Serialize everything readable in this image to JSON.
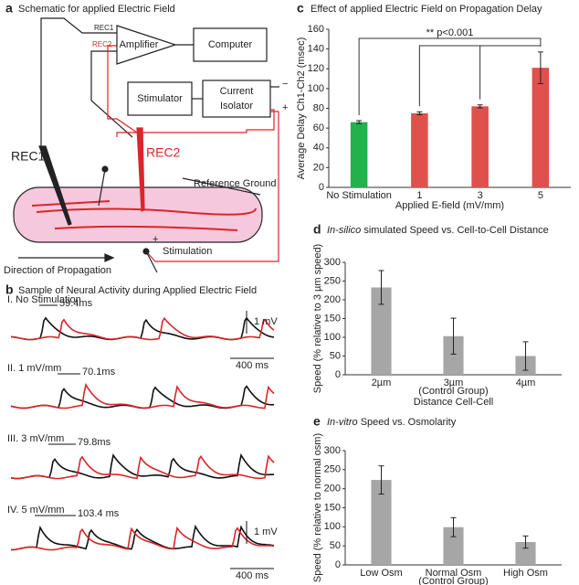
{
  "schematic": {
    "panel": "a",
    "title": "Schematic for applied Electric Field",
    "rec1_small": "REC1",
    "rec2_small": "REC2",
    "amplifier": "Amplifier",
    "computer": "Computer",
    "stimulator": "Stimulator",
    "isolator": [
      "Current",
      "Isolator"
    ],
    "minus": "−",
    "plus": "+",
    "rec1": "REC1",
    "rec2": "REC2",
    "reference": "Reference Ground",
    "stimulation": "Stimulation",
    "stim_plus": "+",
    "direction": "Direction of Propagation"
  },
  "traces": {
    "panel": "b",
    "title": "Sample of Neural Activity during Applied Electric Field",
    "rows": [
      {
        "label": "I. No Stimulation",
        "delay": "59.4ms"
      },
      {
        "label": "II. 1 mV/mm",
        "delay": "70.1ms"
      },
      {
        "label": "III. 3 mV/mm",
        "delay": "79.8ms"
      },
      {
        "label": "IV. 5 mV/mm",
        "delay": "103.4 ms"
      }
    ],
    "scales": [
      {
        "voltage": "1 mV",
        "time": "400 ms"
      },
      {
        "voltage": "1 mV",
        "time": "400 ms"
      }
    ]
  },
  "chart_data": [
    {
      "type": "bar",
      "panel": "c",
      "title": "Effect of applied Electric Field on Propagation Delay",
      "categories": [
        "No Stimulation",
        "1",
        "3",
        "5"
      ],
      "values": [
        66,
        75,
        82,
        121
      ],
      "errors": [
        1.5,
        1.5,
        1.5,
        16
      ],
      "colors": [
        "#22b24c",
        "#e0504c",
        "#e0504c",
        "#e0504c"
      ],
      "ylim": [
        0,
        160
      ],
      "yticks": [
        0,
        20,
        40,
        60,
        80,
        100,
        120,
        140,
        160
      ],
      "xlabel": "Applied E-field (mV/mm)",
      "ylabel": "Average Delay Ch1-Ch2 (msec)",
      "annotation": "** p<0.001"
    },
    {
      "type": "bar",
      "panel": "d",
      "title_italic": "In-silico",
      "title": "simulated Speed vs. Cell-to-Cell Distance",
      "categories": [
        "2µm",
        "3µm",
        "4µm"
      ],
      "category_notes": [
        null,
        "(Control Group)",
        null
      ],
      "values": [
        233,
        103,
        50
      ],
      "errors": [
        45,
        48,
        38
      ],
      "color": "#a6a6a6",
      "ylim": [
        0,
        300
      ],
      "yticks": [
        0,
        50,
        100,
        150,
        200,
        250,
        300
      ],
      "xlabel": "Distance Cell-Cell",
      "ylabel": "Speed (% relative to 3 µm speed)"
    },
    {
      "type": "bar",
      "panel": "e",
      "title_italic": "In-vitro",
      "title": "Speed vs. Osmolarity",
      "categories": [
        "Low Osm",
        "Normal Osm",
        "High Osm"
      ],
      "category_notes": [
        null,
        "(Control Group)",
        null
      ],
      "values": [
        223,
        99,
        60
      ],
      "errors": [
        37,
        25,
        16
      ],
      "color": "#a6a6a6",
      "ylim": [
        0,
        300
      ],
      "yticks": [
        0,
        50,
        100,
        150,
        200,
        250,
        300
      ],
      "ylabel": "Speed (% relative to normal osm)"
    }
  ]
}
